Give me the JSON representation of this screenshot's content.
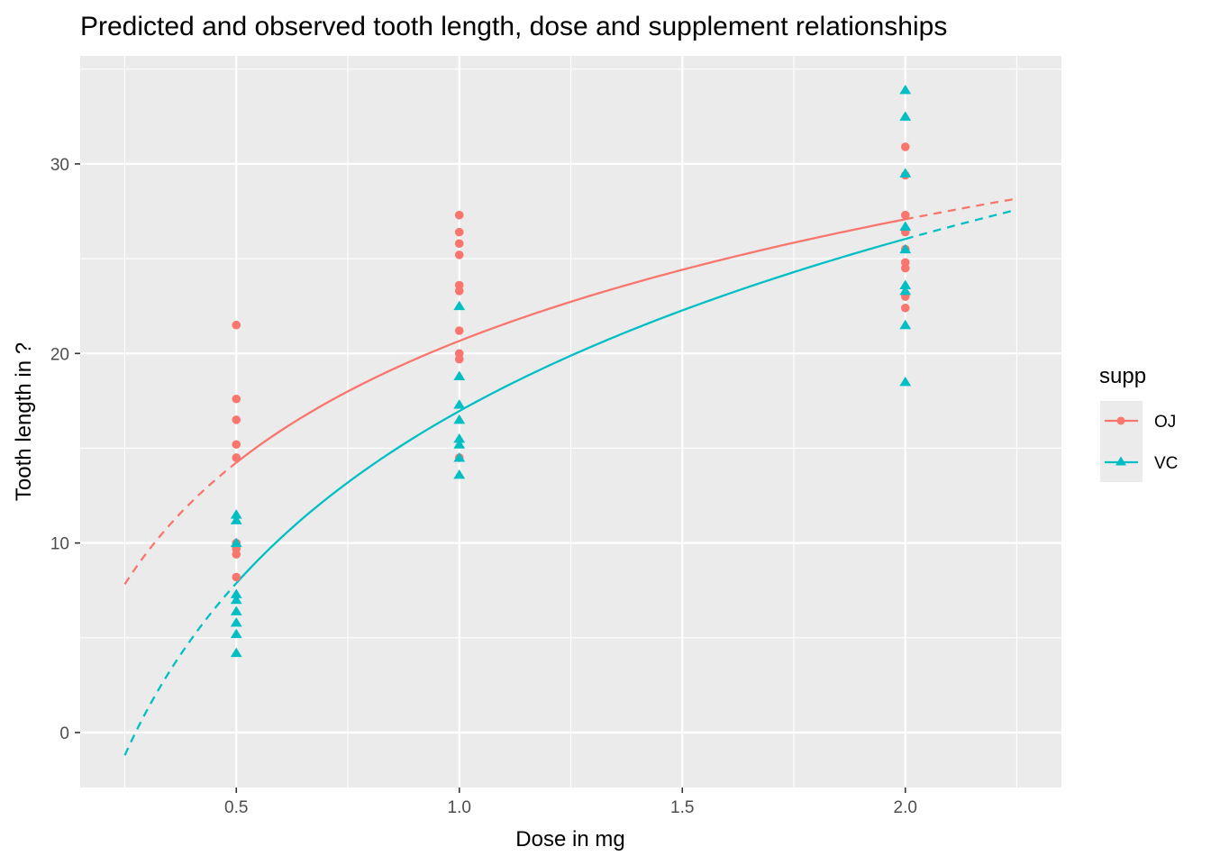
{
  "chart_data": {
    "type": "scatter",
    "title": "Predicted and observed tooth length, dose and supplement relationships",
    "xlabel": "Dose in mg",
    "ylabel": "Tooth length in ?",
    "xlim": [
      0.15,
      2.35
    ],
    "ylim": [
      -2.9,
      35.7
    ],
    "x_ticks": [
      0.5,
      1.0,
      1.5,
      2.0
    ],
    "x_tick_labels": [
      "0.5",
      "1.0",
      "1.5",
      "2.0"
    ],
    "y_ticks": [
      0,
      10,
      20,
      30
    ],
    "y_tick_labels": [
      "0",
      "10",
      "20",
      "30"
    ],
    "grid": true,
    "legend": {
      "title": "supp",
      "position": "right"
    },
    "series": [
      {
        "name": "OJ",
        "color": "#F8766D",
        "marker": "circle",
        "points": [
          [
            0.5,
            21.5
          ],
          [
            0.5,
            17.6
          ],
          [
            0.5,
            16.5
          ],
          [
            0.5,
            15.2
          ],
          [
            0.5,
            14.5
          ],
          [
            0.5,
            10.0
          ],
          [
            0.5,
            9.7
          ],
          [
            0.5,
            9.4
          ],
          [
            0.5,
            8.2
          ],
          [
            1.0,
            27.3
          ],
          [
            1.0,
            26.4
          ],
          [
            1.0,
            25.8
          ],
          [
            1.0,
            25.2
          ],
          [
            1.0,
            23.6
          ],
          [
            1.0,
            23.3
          ],
          [
            1.0,
            21.2
          ],
          [
            1.0,
            20.0
          ],
          [
            1.0,
            19.7
          ],
          [
            1.0,
            14.5
          ],
          [
            2.0,
            30.9
          ],
          [
            2.0,
            29.4
          ],
          [
            2.0,
            27.3
          ],
          [
            2.0,
            26.4
          ],
          [
            2.0,
            25.5
          ],
          [
            2.0,
            24.8
          ],
          [
            2.0,
            24.5
          ],
          [
            2.0,
            23.0
          ],
          [
            2.0,
            22.4
          ]
        ],
        "fit": {
          "model": "log",
          "intercept": 20.66,
          "slope": 9.26,
          "observed_range": [
            0.5,
            2.0
          ],
          "extrapolated_range": [
            0.25,
            2.25
          ]
        }
      },
      {
        "name": "VC",
        "color": "#00BFC4",
        "marker": "triangle",
        "points": [
          [
            0.5,
            11.5
          ],
          [
            0.5,
            11.2
          ],
          [
            0.5,
            10.0
          ],
          [
            0.5,
            7.3
          ],
          [
            0.5,
            7.0
          ],
          [
            0.5,
            6.4
          ],
          [
            0.5,
            5.8
          ],
          [
            0.5,
            5.2
          ],
          [
            0.5,
            4.2
          ],
          [
            1.0,
            22.5
          ],
          [
            1.0,
            18.8
          ],
          [
            1.0,
            17.3
          ],
          [
            1.0,
            16.5
          ],
          [
            1.0,
            15.5
          ],
          [
            1.0,
            15.2
          ],
          [
            1.0,
            14.5
          ],
          [
            1.0,
            13.6
          ],
          [
            2.0,
            33.9
          ],
          [
            2.0,
            32.5
          ],
          [
            2.0,
            29.5
          ],
          [
            2.0,
            26.7
          ],
          [
            2.0,
            25.5
          ],
          [
            2.0,
            23.6
          ],
          [
            2.0,
            23.3
          ],
          [
            2.0,
            21.5
          ],
          [
            2.0,
            18.5
          ]
        ],
        "fit": {
          "model": "log",
          "intercept": 16.96,
          "slope": 13.1,
          "observed_range": [
            0.5,
            2.0
          ],
          "extrapolated_range": [
            0.25,
            2.25
          ]
        }
      }
    ]
  }
}
